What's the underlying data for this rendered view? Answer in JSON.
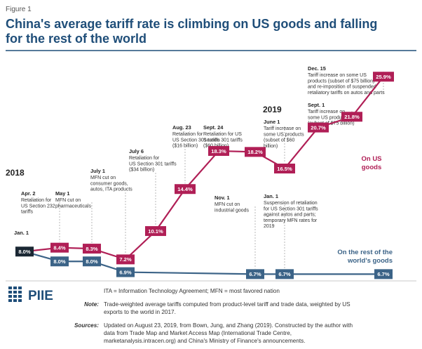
{
  "figure_label": "Figure 1",
  "title_lines": [
    "China's average tariff rate is climbing on US goods and falling",
    "for the rest of the world"
  ],
  "colors": {
    "us": "#b01f56",
    "row": "#3b6387",
    "jan_box": "#1a2733",
    "title": "#1f4e79"
  },
  "years": [
    "2018",
    "2019"
  ],
  "chart_data": {
    "type": "line",
    "title": "China's average tariff rate is climbing on US goods and falling for the rest of the world",
    "xlabel": "",
    "ylabel": "",
    "ylim": [
      5,
      28
    ],
    "grid": false,
    "series": [
      {
        "name": "On US goods",
        "color": "#b01f56",
        "points": [
          {
            "date": "2018-01-01",
            "value": 8.0
          },
          {
            "date": "2018-04-02",
            "value": 8.4
          },
          {
            "date": "2018-05-01",
            "value": 8.3
          },
          {
            "date": "2018-07-01",
            "value": 7.2
          },
          {
            "date": "2018-07-06",
            "value": 10.1
          },
          {
            "date": "2018-08-23",
            "value": 14.4
          },
          {
            "date": "2018-09-24",
            "value": 18.3
          },
          {
            "date": "2018-11-01",
            "value": 18.2
          },
          {
            "date": "2019-01-01",
            "value": 16.5
          },
          {
            "date": "2019-06-01",
            "value": 20.7
          },
          {
            "date": "2019-09-01",
            "value": 21.8
          },
          {
            "date": "2019-12-15",
            "value": 25.9
          }
        ]
      },
      {
        "name": "On the rest of the world's goods",
        "color": "#3b6387",
        "points": [
          {
            "date": "2018-01-01",
            "value": 8.0
          },
          {
            "date": "2018-04-02",
            "value": 8.0
          },
          {
            "date": "2018-05-01",
            "value": 8.0
          },
          {
            "date": "2018-07-01",
            "value": 6.9
          },
          {
            "date": "2018-11-01",
            "value": 6.7
          },
          {
            "date": "2019-01-01",
            "value": 6.7
          },
          {
            "date": "2019-12-15",
            "value": 6.7
          }
        ]
      }
    ]
  },
  "point_labels": {
    "us": [
      "8.4%",
      "8.3%",
      "7.2%",
      "10.1%",
      "14.4%",
      "18.3%",
      "18.2%",
      "16.5%",
      "20.7%",
      "21.8%",
      "25.9%"
    ],
    "row": [
      "8.0%",
      "8.0%",
      "6.9%",
      "6.7%",
      "6.7%",
      "6.7%"
    ],
    "start": "8.0%"
  },
  "series_labels": {
    "us": [
      "On US",
      "goods"
    ],
    "row": [
      "On the rest of the",
      "world's goods"
    ]
  },
  "annotations": [
    {
      "date": "Jan. 1",
      "lines": []
    },
    {
      "date": "Apr. 2",
      "lines": [
        "Retaliation for",
        "US Section 232",
        "tariffs"
      ]
    },
    {
      "date": "May 1",
      "lines": [
        "MFN cut on",
        "pharmaceuticals"
      ]
    },
    {
      "date": "July 1",
      "lines": [
        "MFN cut on",
        "consumer goods,",
        "autos, ITA products"
      ]
    },
    {
      "date": "July 6",
      "lines": [
        "Retaliation for",
        "US Section 301 tariffs",
        "($34 billion)"
      ]
    },
    {
      "date": "Aug. 23",
      "lines": [
        "Retaliation for",
        "US Section 301 tariffs",
        "($16 billion)"
      ]
    },
    {
      "date": "Sept. 24",
      "lines": [
        "Retaliation for US",
        "Section 301 tariffs",
        "($60 billion)"
      ]
    },
    {
      "date": "Nov. 1",
      "lines": [
        "MFN cut on",
        "industrial goods"
      ]
    },
    {
      "date": "Jan. 1",
      "lines": [
        "Suspension of retaliation",
        "for US Section 301 tariffs",
        "against autos and parts;",
        "temporary MFN rates for",
        "2019"
      ]
    },
    {
      "date": "June 1",
      "lines": [
        "Tariff increase on",
        "some US products",
        "(subset of $60",
        "billion)"
      ]
    },
    {
      "date": "Sept. 1",
      "lines": [
        "Tariff increase on",
        "some US products",
        "(subset of $75 billion)"
      ]
    },
    {
      "date": "Dec. 15",
      "lines": [
        "Tariff increase on some US",
        "products (subset of $75 billion)",
        "and re-imposition of suspended",
        "retaliatory tariffs on autos and parts"
      ]
    }
  ],
  "footer": {
    "logo": "PIIE",
    "abbrev": "ITA = Information Technology Agreement; MFN = most favored nation",
    "note_key": "Note:",
    "note_lines": [
      "Trade-weighted average tariffs computed from product-level tariff and trade data, weighted by US",
      "exports to the world in 2017."
    ],
    "sources_key": "Sources:",
    "sources_lines": [
      "Updated on August 23, 2019, from Bown, Jung, and Zhang (2019). Constructed by the author with",
      "data from Trade Map and Market Access Map (International Trade Centre,",
      "marketanalysis.intracen.org) and China's Ministry of Finance's announcements."
    ]
  }
}
